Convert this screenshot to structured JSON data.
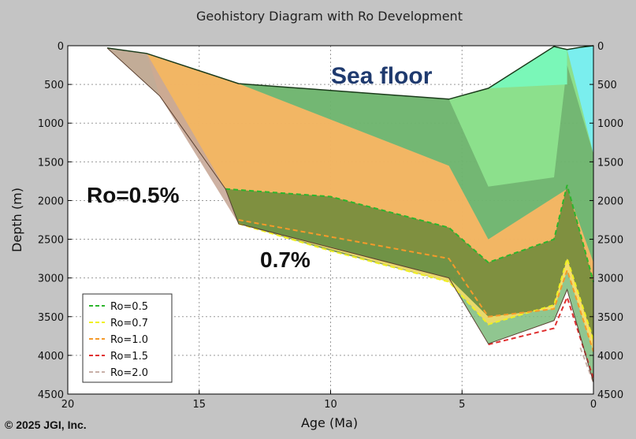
{
  "chart_data": {
    "type": "area",
    "title": "Geohistory Diagram with Ro Development",
    "xlabel": "Age (Ma)",
    "ylabel": "Depth (m)",
    "xlim": [
      20,
      0
    ],
    "ylim": [
      4500,
      0
    ],
    "xticks": [
      "20",
      "15",
      "10",
      "5",
      "0"
    ],
    "yticks": [
      "0",
      "500",
      "1000",
      "1500",
      "2000",
      "2500",
      "3000",
      "3500",
      "4000",
      "4500"
    ],
    "grid": true,
    "legend_placement": "lower-left",
    "annotations": {
      "sea_floor": "Sea floor",
      "ro05": "Ro=0.5%",
      "ro07": "0.7%"
    },
    "copyright": "© 2025 JGI, Inc.",
    "sea_floor": [
      [
        18.5,
        30
      ],
      [
        17,
        100
      ],
      [
        13.5,
        490
      ],
      [
        5.5,
        690
      ],
      [
        4,
        550
      ],
      [
        1.5,
        10
      ],
      [
        1,
        50
      ],
      [
        0.5,
        20
      ],
      [
        0,
        0
      ]
    ],
    "basement": [
      [
        18.5,
        30
      ],
      [
        16.5,
        650
      ],
      [
        14,
        1850
      ],
      [
        13.5,
        2300
      ],
      [
        5.5,
        3000
      ],
      [
        4,
        3850
      ],
      [
        1.5,
        3550
      ],
      [
        1,
        3150
      ],
      [
        0,
        4350
      ]
    ],
    "layers": [
      {
        "colour": "#f2b4a4",
        "points": [
          [
            17,
            130
          ],
          [
            14,
            1850
          ],
          [
            13.5,
            2300
          ],
          [
            10,
            2600
          ],
          [
            5.5,
            3050
          ],
          [
            4,
            3850
          ],
          [
            1.5,
            3600
          ],
          [
            1,
            3200
          ],
          [
            0,
            4350
          ]
        ]
      },
      {
        "colour": "#fdb45f",
        "points": [
          [
            13.5,
            500
          ],
          [
            5.5,
            1550
          ],
          [
            4,
            2500
          ],
          [
            1,
            1850
          ],
          [
            0,
            2800
          ]
        ]
      },
      {
        "colour": "#6ab26a",
        "points": [
          [
            5.5,
            690
          ],
          [
            4,
            1820
          ],
          [
            1.5,
            1700
          ],
          [
            1,
            250
          ],
          [
            0,
            1400
          ]
        ]
      },
      {
        "colour": "#7af7b8",
        "points": [
          [
            4,
            550
          ],
          [
            1.5,
            10
          ],
          [
            1,
            50
          ],
          [
            0.5,
            20
          ],
          [
            0,
            0
          ]
        ]
      },
      {
        "colour": "#7aeeee",
        "points": [
          [
            1,
            50
          ],
          [
            0.5,
            20
          ],
          [
            0,
            0
          ],
          [
            0,
            1400
          ]
        ]
      }
    ],
    "series": [
      {
        "name": "Ro=0.5",
        "color": "#2db52d",
        "points": [
          [
            14,
            1850
          ],
          [
            10,
            1950
          ],
          [
            5.5,
            2350
          ],
          [
            4,
            2800
          ],
          [
            1.5,
            2500
          ],
          [
            1,
            1800
          ],
          [
            0,
            3050
          ]
        ]
      },
      {
        "name": "Ro=0.7",
        "color": "#f0f020",
        "points": [
          [
            13.5,
            2300
          ],
          [
            10,
            2650
          ],
          [
            5.5,
            3050
          ],
          [
            4,
            3600
          ],
          [
            1.5,
            3350
          ],
          [
            1,
            2750
          ],
          [
            0,
            3800
          ]
        ]
      },
      {
        "name": "Ro=1.0",
        "color": "#f59a2a",
        "points": [
          [
            13.5,
            2250
          ],
          [
            5.5,
            2750
          ],
          [
            4,
            3500
          ],
          [
            1.5,
            3400
          ],
          [
            1,
            2900
          ],
          [
            0,
            3950
          ]
        ]
      },
      {
        "name": "Ro=1.5",
        "color": "#e03030",
        "points": [
          [
            4,
            3860
          ],
          [
            1.5,
            3650
          ],
          [
            1,
            3250
          ],
          [
            0,
            4300
          ]
        ]
      },
      {
        "name": "Ro=2.0",
        "color": "#c8b0a8",
        "points": [
          [
            0.5,
            3900
          ],
          [
            0,
            4350
          ]
        ]
      }
    ]
  }
}
